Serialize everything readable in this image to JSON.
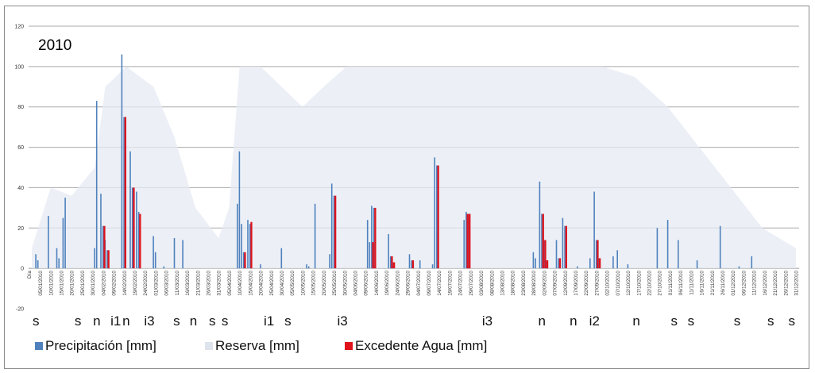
{
  "chart_data": {
    "type": "bar",
    "title": "2010",
    "xlabel": "",
    "ylabel": "",
    "ylim": [
      -20,
      120
    ],
    "yticks": [
      -20,
      0,
      20,
      40,
      60,
      80,
      100,
      120
    ],
    "grid": true,
    "legend_position": "bottom-left",
    "x_start_label": "Día",
    "x_date_labels": [
      "05/01/2010",
      "10/01/2010",
      "15/01/2010",
      "20/01/2010",
      "25/01/2010",
      "30/01/2010",
      "04/02/2010",
      "09/02/2010",
      "14/02/2010",
      "19/02/2010",
      "24/02/2010",
      "01/03/2010",
      "06/03/2010",
      "11/03/2010",
      "16/03/2010",
      "21/03/2010",
      "26/03/2010",
      "31/03/2010",
      "05/04/2010",
      "10/04/2010",
      "15/04/2010",
      "20/04/2010",
      "25/04/2010",
      "30/04/2010",
      "05/05/2010",
      "10/05/2010",
      "15/05/2010",
      "20/05/2010",
      "25/05/2010",
      "30/05/2010",
      "04/06/2010",
      "09/06/2010",
      "14/06/2010",
      "19/06/2010",
      "24/06/2010",
      "29/06/2010",
      "04/07/2010",
      "09/07/2010",
      "14/07/2010",
      "19/07/2010",
      "24/07/2010",
      "29/07/2010",
      "03/08/2010",
      "08/08/2010",
      "13/08/2010",
      "18/08/2010",
      "23/08/2010",
      "28/08/2010",
      "02/09/2010",
      "07/09/2010",
      "12/09/2010",
      "17/09/2010",
      "22/09/2010",
      "27/09/2010",
      "02/10/2010",
      "07/10/2010",
      "12/10/2010",
      "17/10/2010",
      "22/10/2010",
      "27/10/2010",
      "01/11/2010",
      "06/11/2010",
      "11/11/2010",
      "16/11/2010",
      "21/11/2010",
      "26/11/2010",
      "01/12/2010",
      "06/12/2010",
      "11/12/2010",
      "16/12/2010",
      "21/12/2010",
      "26/12/2010",
      "31/12/2010"
    ],
    "series": [
      {
        "name": "Precipitación [mm]",
        "color": "#4f81bd",
        "points": [
          [
            "03/01/2010",
            7
          ],
          [
            "04/01/2010",
            4
          ],
          [
            "09/01/2010",
            26
          ],
          [
            "13/01/2010",
            10
          ],
          [
            "14/01/2010",
            5
          ],
          [
            "16/01/2010",
            25
          ],
          [
            "17/01/2010",
            35
          ],
          [
            "31/01/2010",
            10
          ],
          [
            "01/02/2010",
            83
          ],
          [
            "03/02/2010",
            37
          ],
          [
            "04/02/2010",
            21
          ],
          [
            "05/02/2010",
            14
          ],
          [
            "06/02/2010",
            9
          ],
          [
            "13/02/2010",
            106
          ],
          [
            "14/02/2010",
            75
          ],
          [
            "17/02/2010",
            58
          ],
          [
            "18/02/2010",
            40
          ],
          [
            "20/02/2010",
            38
          ],
          [
            "21/02/2010",
            28
          ],
          [
            "28/02/2010",
            16
          ],
          [
            "01/03/2010",
            8
          ],
          [
            "05/03/2010",
            1
          ],
          [
            "10/03/2010",
            15
          ],
          [
            "14/03/2010",
            14
          ],
          [
            "09/04/2010",
            32
          ],
          [
            "10/04/2010",
            58
          ],
          [
            "11/04/2010",
            22
          ],
          [
            "12/04/2010",
            8
          ],
          [
            "14/04/2010",
            24
          ],
          [
            "15/04/2010",
            22
          ],
          [
            "20/04/2010",
            2
          ],
          [
            "30/04/2010",
            10
          ],
          [
            "12/05/2010",
            2
          ],
          [
            "13/05/2010",
            1
          ],
          [
            "16/05/2010",
            32
          ],
          [
            "23/05/2010",
            7
          ],
          [
            "24/05/2010",
            42
          ],
          [
            "25/05/2010",
            36
          ],
          [
            "10/06/2010",
            24
          ],
          [
            "11/06/2010",
            13
          ],
          [
            "12/06/2010",
            31
          ],
          [
            "13/06/2010",
            30
          ],
          [
            "20/06/2010",
            17
          ],
          [
            "21/06/2010",
            6
          ],
          [
            "22/06/2010",
            3
          ],
          [
            "30/06/2010",
            7
          ],
          [
            "01/07/2010",
            4
          ],
          [
            "05/07/2010",
            4
          ],
          [
            "11/07/2010",
            2
          ],
          [
            "12/07/2010",
            55
          ],
          [
            "13/07/2010",
            51
          ],
          [
            "26/07/2010",
            24
          ],
          [
            "27/07/2010",
            28
          ],
          [
            "28/07/2010",
            27
          ],
          [
            "28/08/2010",
            8
          ],
          [
            "29/08/2010",
            5
          ],
          [
            "31/08/2010",
            43
          ],
          [
            "01/09/2010",
            27
          ],
          [
            "02/09/2010",
            14
          ],
          [
            "03/09/2010",
            4
          ],
          [
            "08/09/2010",
            14
          ],
          [
            "09/09/2010",
            5
          ],
          [
            "11/09/2010",
            25
          ],
          [
            "12/09/2010",
            21
          ],
          [
            "18/09/2010",
            1
          ],
          [
            "24/09/2010",
            5
          ],
          [
            "26/09/2010",
            38
          ],
          [
            "27/09/2010",
            14
          ],
          [
            "28/09/2010",
            5
          ],
          [
            "05/10/2010",
            6
          ],
          [
            "07/10/2010",
            9
          ],
          [
            "12/10/2010",
            2
          ],
          [
            "26/10/2010",
            20
          ],
          [
            "31/10/2010",
            24
          ],
          [
            "05/11/2010",
            14
          ],
          [
            "14/11/2010",
            4
          ],
          [
            "25/11/2010",
            21
          ],
          [
            "04/12/2010",
            1
          ],
          [
            "10/12/2010",
            6
          ]
        ]
      },
      {
        "name": "Reserva [mm]",
        "color": "#e6ebf3",
        "points": [
          [
            "01/01/2010",
            10
          ],
          [
            "10/01/2010",
            40
          ],
          [
            "20/01/2010",
            36
          ],
          [
            "31/01/2010",
            50
          ],
          [
            "05/02/2010",
            90
          ],
          [
            "15/02/2010",
            100
          ],
          [
            "28/02/2010",
            90
          ],
          [
            "10/03/2010",
            65
          ],
          [
            "20/03/2010",
            30
          ],
          [
            "31/03/2010",
            15
          ],
          [
            "05/04/2010",
            30
          ],
          [
            "10/04/2010",
            100
          ],
          [
            "20/04/2010",
            100
          ],
          [
            "30/04/2010",
            90
          ],
          [
            "10/05/2010",
            80
          ],
          [
            "20/05/2010",
            90
          ],
          [
            "31/05/2010",
            100
          ],
          [
            "15/06/2010",
            100
          ],
          [
            "30/06/2010",
            100
          ],
          [
            "15/07/2010",
            100
          ],
          [
            "31/07/2010",
            100
          ],
          [
            "15/08/2010",
            100
          ],
          [
            "31/08/2010",
            100
          ],
          [
            "15/09/2010",
            100
          ],
          [
            "30/09/2010",
            100
          ],
          [
            "15/10/2010",
            95
          ],
          [
            "31/10/2010",
            80
          ],
          [
            "15/11/2010",
            60
          ],
          [
            "30/11/2010",
            40
          ],
          [
            "15/12/2010",
            20
          ],
          [
            "31/12/2010",
            10
          ]
        ]
      },
      {
        "name": "Excedente Agua [mm]",
        "color": "#e0121c",
        "points": [
          [
            "04/02/2010",
            21
          ],
          [
            "06/02/2010",
            9
          ],
          [
            "14/02/2010",
            75
          ],
          [
            "18/02/2010",
            40
          ],
          [
            "21/02/2010",
            27
          ],
          [
            "12/04/2010",
            8
          ],
          [
            "15/04/2010",
            23
          ],
          [
            "25/05/2010",
            36
          ],
          [
            "12/06/2010",
            13
          ],
          [
            "13/06/2010",
            30
          ],
          [
            "21/06/2010",
            6
          ],
          [
            "22/06/2010",
            3
          ],
          [
            "01/07/2010",
            4
          ],
          [
            "13/07/2010",
            51
          ],
          [
            "27/07/2010",
            27
          ],
          [
            "28/07/2010",
            27
          ],
          [
            "01/09/2010",
            27
          ],
          [
            "02/09/2010",
            14
          ],
          [
            "03/09/2010",
            4
          ],
          [
            "09/09/2010",
            5
          ],
          [
            "12/09/2010",
            21
          ],
          [
            "27/09/2010",
            14
          ],
          [
            "28/09/2010",
            5
          ]
        ]
      }
    ],
    "annotations": [
      {
        "text": "s",
        "date": "03/01/2010"
      },
      {
        "text": "s",
        "date": "23/01/2010"
      },
      {
        "text": "n",
        "date": "01/02/2010"
      },
      {
        "text": "i1",
        "date": "10/02/2010"
      },
      {
        "text": "n",
        "date": "15/02/2010"
      },
      {
        "text": "i3",
        "date": "26/02/2010"
      },
      {
        "text": "s",
        "date": "11/03/2010"
      },
      {
        "text": "n",
        "date": "19/03/2010"
      },
      {
        "text": "s",
        "date": "28/03/2010"
      },
      {
        "text": "s",
        "date": "03/04/2010"
      },
      {
        "text": "i1",
        "date": "24/04/2010"
      },
      {
        "text": "s",
        "date": "03/05/2010"
      },
      {
        "text": "i3",
        "date": "29/05/2010"
      },
      {
        "text": "i3",
        "date": "06/08/2010"
      },
      {
        "text": "n",
        "date": "01/09/2010"
      },
      {
        "text": "n",
        "date": "16/09/2010"
      },
      {
        "text": "i2",
        "date": "26/09/2010"
      },
      {
        "text": "n",
        "date": "16/10/2010"
      },
      {
        "text": "s",
        "date": "03/11/2010"
      },
      {
        "text": "s",
        "date": "11/11/2010"
      },
      {
        "text": "s",
        "date": "03/12/2010"
      },
      {
        "text": "s",
        "date": "19/12/2010"
      },
      {
        "text": "s",
        "date": "29/12/2010"
      }
    ]
  }
}
